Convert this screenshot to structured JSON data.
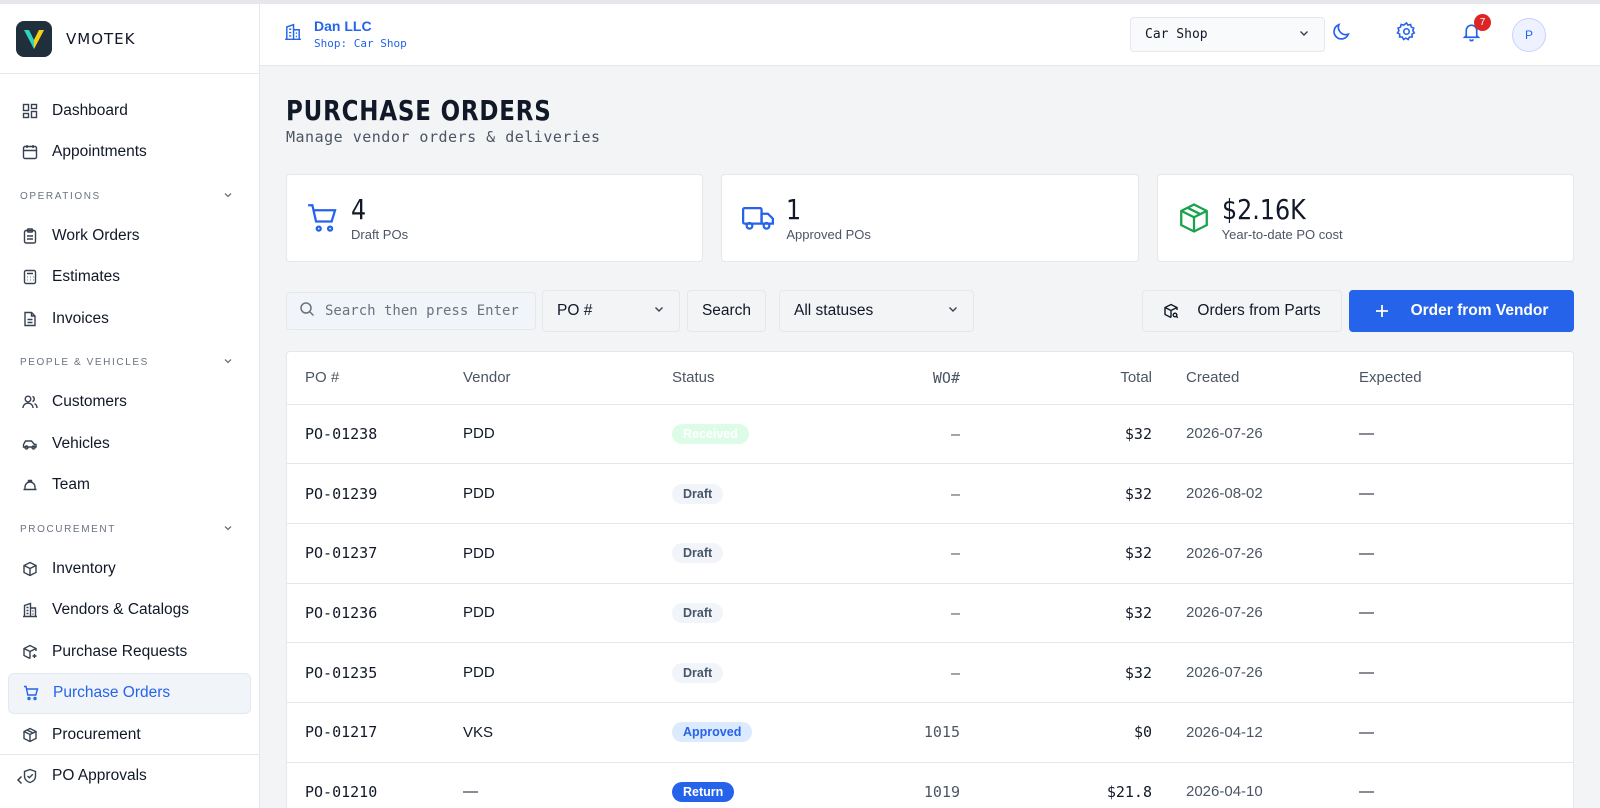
{
  "brand": {
    "name": "VMOTEK"
  },
  "header": {
    "org_name": "Dan LLC",
    "shop_label": "Shop: Car Shop",
    "shop_select": "Car Shop",
    "notifications_count": "7",
    "avatar_initial": "P"
  },
  "sidebar": {
    "top_items": [
      {
        "label": "Dashboard",
        "icon": "dashboard-icon"
      },
      {
        "label": "Appointments",
        "icon": "calendar-icon"
      }
    ],
    "sections": {
      "operations": "OPERATIONS",
      "people": "PEOPLE & VEHICLES",
      "procurement": "PROCUREMENT"
    },
    "operations_items": [
      {
        "label": "Work Orders",
        "icon": "clipboard-icon"
      },
      {
        "label": "Estimates",
        "icon": "calculator-icon"
      },
      {
        "label": "Invoices",
        "icon": "document-icon"
      }
    ],
    "people_items": [
      {
        "label": "Customers",
        "icon": "users-icon"
      },
      {
        "label": "Vehicles",
        "icon": "car-icon"
      },
      {
        "label": "Team",
        "icon": "hardhat-icon"
      }
    ],
    "procurement_items": [
      {
        "label": "Inventory",
        "icon": "box-icon"
      },
      {
        "label": "Vendors & Catalogs",
        "icon": "building-icon"
      },
      {
        "label": "Purchase Requests",
        "icon": "package-plus-icon"
      },
      {
        "label": "Purchase Orders",
        "icon": "cart-icon"
      },
      {
        "label": "Procurement",
        "icon": "package-icon"
      },
      {
        "label": "PO Approvals",
        "icon": "shield-check-icon"
      }
    ],
    "active": "Purchase Orders"
  },
  "page": {
    "title": "PURCHASE ORDERS",
    "subtitle": "Manage vendor orders & deliveries"
  },
  "stats": [
    {
      "value": "4",
      "label": "Draft POs",
      "icon": "cart-icon",
      "color": "#2563eb"
    },
    {
      "value": "1",
      "label": "Approved POs",
      "icon": "truck-icon",
      "color": "#2563eb"
    },
    {
      "value": "$2.16K",
      "label": "Year-to-date PO cost",
      "icon": "package-icon",
      "color": "#16a34a"
    }
  ],
  "filters": {
    "search_placeholder": "Search then press Enter",
    "field_select": "PO #",
    "search_button": "Search",
    "status_select": "All statuses",
    "orders_from_parts": "Orders from Parts",
    "order_from_vendor": "Order from Vendor"
  },
  "table": {
    "headers": {
      "po": "PO #",
      "vendor": "Vendor",
      "status": "Status",
      "wo": "WO#",
      "total": "Total",
      "created": "Created",
      "expected": "Expected"
    },
    "rows": [
      {
        "po": "PO-01238",
        "vendor": "PDD",
        "status": "Received",
        "wo": "–",
        "total": "$32",
        "created": "2026-07-26",
        "expected": "—"
      },
      {
        "po": "PO-01239",
        "vendor": "PDD",
        "status": "Draft",
        "wo": "–",
        "total": "$32",
        "created": "2026-08-02",
        "expected": "—"
      },
      {
        "po": "PO-01237",
        "vendor": "PDD",
        "status": "Draft",
        "wo": "–",
        "total": "$32",
        "created": "2026-07-26",
        "expected": "—"
      },
      {
        "po": "PO-01236",
        "vendor": "PDD",
        "status": "Draft",
        "wo": "–",
        "total": "$32",
        "created": "2026-07-26",
        "expected": "—"
      },
      {
        "po": "PO-01235",
        "vendor": "PDD",
        "status": "Draft",
        "wo": "–",
        "total": "$32",
        "created": "2026-07-26",
        "expected": "—"
      },
      {
        "po": "PO-01217",
        "vendor": "VKS",
        "status": "Approved",
        "wo": "1015",
        "total": "$0",
        "created": "2026-04-12",
        "expected": "—"
      },
      {
        "po": "PO-01210",
        "vendor": "—",
        "status": "Return",
        "wo": "1019",
        "total": "$21.8",
        "created": "2026-04-10",
        "expected": "—"
      }
    ]
  }
}
